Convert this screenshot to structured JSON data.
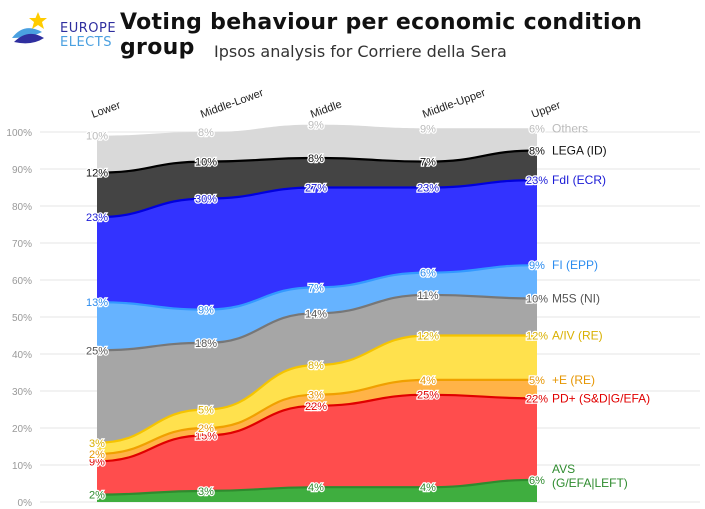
{
  "header": {
    "logo_line1": "EUROPE",
    "logo_line2": "ELECTS",
    "title": "Voting behaviour per economic condition group",
    "subtitle": "Ipsos analysis for Corriere della Sera"
  },
  "chart_data": {
    "type": "area",
    "stacked": true,
    "title": "Voting behaviour per economic condition group",
    "subtitle": "Ipsos analysis for Corriere della Sera",
    "categories": [
      "Lower",
      "Middle-Lower",
      "Middle",
      "Middle-Upper",
      "Upper"
    ],
    "ylim": [
      0,
      100
    ],
    "yticks": [
      "0%",
      "10%",
      "20%",
      "30%",
      "40%",
      "50%",
      "60%",
      "70%",
      "80%",
      "90%",
      "100%"
    ],
    "grid": true,
    "series": [
      {
        "name": "AVS",
        "label": "AVS\n(G/EFA|LEFT)",
        "label_lines": [
          "AVS",
          "(G/EFA|LEFT)"
        ],
        "fill": "#3fae3f",
        "line": "#2e8b2e",
        "text": "#2e8b2e",
        "values": [
          2,
          3,
          4,
          4,
          6
        ],
        "labels": [
          "2%",
          "3%",
          "4%",
          "4%",
          "6%"
        ]
      },
      {
        "name": "PD",
        "label": "PD+ (S&D|G/EFA)",
        "label_lines": [
          "PD+ (S&D|G/EFA)"
        ],
        "fill": "#ff4d4d",
        "line": "#e00000",
        "text": "#e00000",
        "values": [
          9,
          15,
          22,
          25,
          22
        ],
        "labels": [
          "9%",
          "15%",
          "22%",
          "25%",
          "22%"
        ]
      },
      {
        "name": "+E",
        "label": "+E (RE)",
        "label_lines": [
          "+E (RE)"
        ],
        "fill": "#ffb347",
        "line": "#f0a000",
        "text": "#e69500",
        "values": [
          2,
          2,
          3,
          4,
          5
        ],
        "labels": [
          "2%",
          "2%",
          "3%",
          "4%",
          "5%"
        ]
      },
      {
        "name": "A/IV",
        "label": "A/IV (RE)",
        "label_lines": [
          "A/IV (RE)"
        ],
        "fill": "#ffe14d",
        "line": "#f5c400",
        "text": "#d9b000",
        "values": [
          3,
          5,
          8,
          12,
          12
        ],
        "labels": [
          "3%",
          "5%",
          "8%",
          "12%",
          "12%"
        ]
      },
      {
        "name": "M5S",
        "label": "M5S (NI)",
        "label_lines": [
          "M5S (NI)"
        ],
        "fill": "#a6a6a6",
        "line": "#777777",
        "text": "#555555",
        "values": [
          25,
          18,
          14,
          11,
          10
        ],
        "labels": [
          "25%",
          "18%",
          "14%",
          "11%",
          "10%"
        ]
      },
      {
        "name": "FI",
        "label": "FI (EPP)",
        "label_lines": [
          "FI (EPP)"
        ],
        "fill": "#66b3ff",
        "line": "#3399ff",
        "text": "#2b8cef",
        "values": [
          13,
          9,
          7,
          6,
          9
        ],
        "labels": [
          "13%",
          "9%",
          "7%",
          "6%",
          "9%"
        ]
      },
      {
        "name": "FdI",
        "label": "FdI (ECR)",
        "label_lines": [
          "FdI (ECR)"
        ],
        "fill": "#3333ff",
        "line": "#0000dd",
        "text": "#1a1ad6",
        "values": [
          23,
          30,
          27,
          23,
          23
        ],
        "labels": [
          "23%",
          "30%",
          "27%",
          "23%",
          "23%"
        ]
      },
      {
        "name": "LEGA",
        "label": "LEGA (ID)",
        "label_lines": [
          "LEGA (ID)"
        ],
        "fill": "#444444",
        "line": "#000000",
        "text": "#111111",
        "values": [
          12,
          10,
          8,
          7,
          8
        ],
        "labels": [
          "12%",
          "10%",
          "8%",
          "7%",
          "8%"
        ]
      },
      {
        "name": "Others",
        "label": "Others",
        "label_lines": [
          "Others"
        ],
        "fill": "#d9d9d9",
        "line": "#d9d9d9",
        "text": "#bbbbbb",
        "values": [
          10,
          8,
          9,
          9,
          6
        ],
        "labels": [
          "10%",
          "8%",
          "9%",
          "9%",
          "6%"
        ]
      }
    ]
  }
}
